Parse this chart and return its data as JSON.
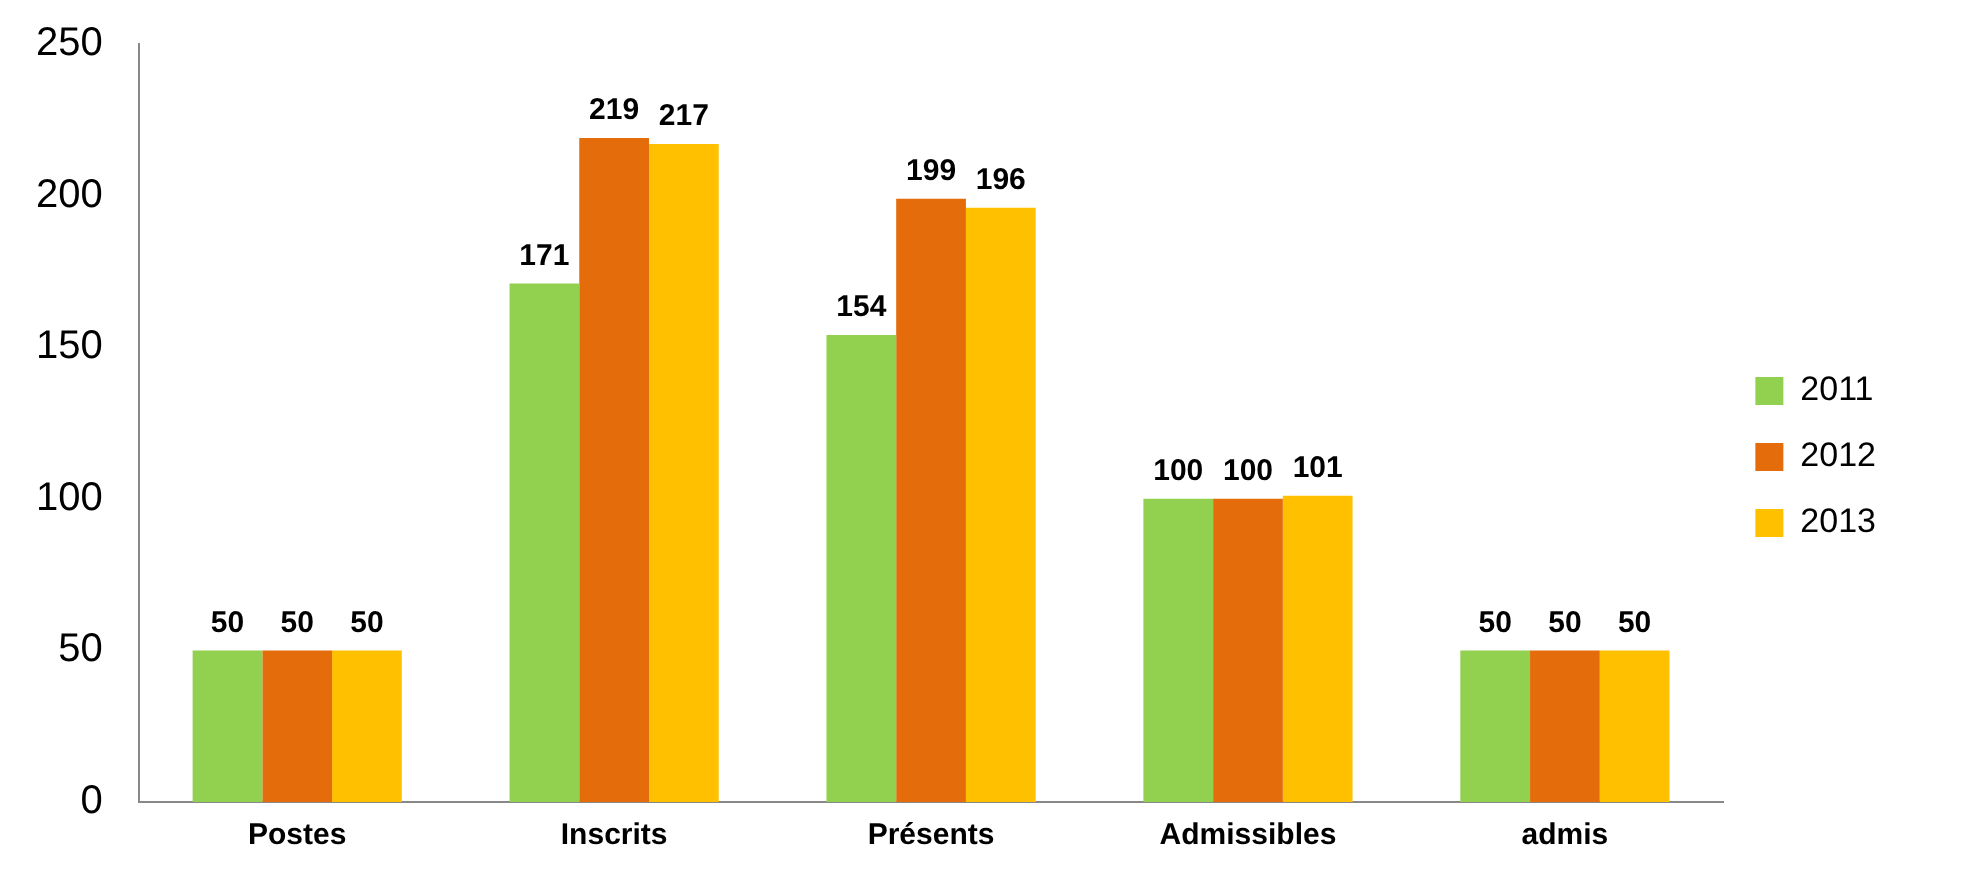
{
  "chart_data": {
    "type": "bar",
    "categories": [
      "Postes",
      "Inscrits",
      "Présents",
      "Admissibles",
      "admis"
    ],
    "series": [
      {
        "name": "2011",
        "color": "#92d050",
        "values": [
          50,
          171,
          154,
          100,
          50
        ]
      },
      {
        "name": "2012",
        "color": "#e46c0a",
        "values": [
          50,
          219,
          199,
          100,
          50
        ]
      },
      {
        "name": "2013",
        "color": "#ffc000",
        "values": [
          50,
          217,
          196,
          101,
          50
        ]
      }
    ],
    "ylim": [
      0,
      250
    ],
    "yticks": [
      0,
      50,
      100,
      150,
      200,
      250
    ],
    "grid": false,
    "legend": "right",
    "data_labels": true
  }
}
